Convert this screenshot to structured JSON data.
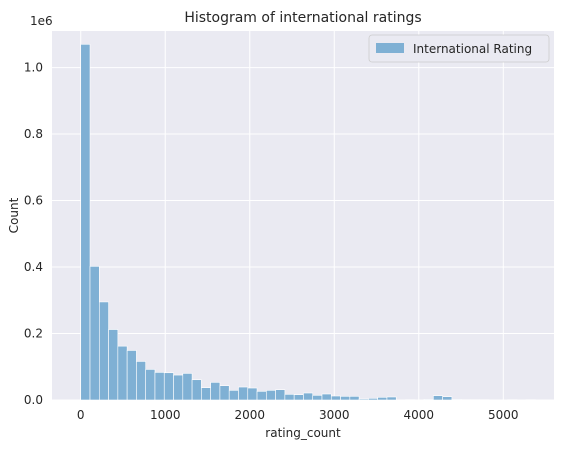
{
  "chart_data": {
    "type": "bar",
    "title": "Histogram of international ratings",
    "xlabel": "rating_count",
    "ylabel": "Count",
    "offset_text": "1e6",
    "xlim": [
      -340,
      5600
    ],
    "ylim": [
      0,
      1.11
    ],
    "xticks": [
      0,
      1000,
      2000,
      3000,
      4000,
      5000
    ],
    "yticks": [
      0.0,
      0.2,
      0.4,
      0.6,
      0.8,
      1.0
    ],
    "ytick_labels": [
      "0.0",
      "0.2",
      "0.4",
      "0.6",
      "0.8",
      "1.0"
    ],
    "grid": true,
    "legend_position": "top-right",
    "bin_width": 109.8,
    "bin_start": 0,
    "series": [
      {
        "name": "International Rating",
        "color": "#7fb0d4",
        "values": [
          1.07,
          0.402,
          0.295,
          0.212,
          0.162,
          0.149,
          0.116,
          0.092,
          0.083,
          0.082,
          0.075,
          0.08,
          0.061,
          0.037,
          0.053,
          0.043,
          0.029,
          0.039,
          0.036,
          0.026,
          0.029,
          0.031,
          0.017,
          0.016,
          0.021,
          0.014,
          0.018,
          0.012,
          0.011,
          0.011,
          0.003,
          0.005,
          0.008,
          0.009,
          0.0,
          0.001,
          0.0,
          0.002,
          0.013,
          0.01,
          0.002,
          0.001,
          0.001,
          0.001,
          0.0,
          0.0,
          0.001,
          0.0,
          0.001,
          0.0
        ]
      }
    ],
    "colors": {
      "background": "#eaeaf2",
      "grid": "#ffffff",
      "bar": "#7fb0d4",
      "bar_edge": "#ffffff"
    }
  }
}
